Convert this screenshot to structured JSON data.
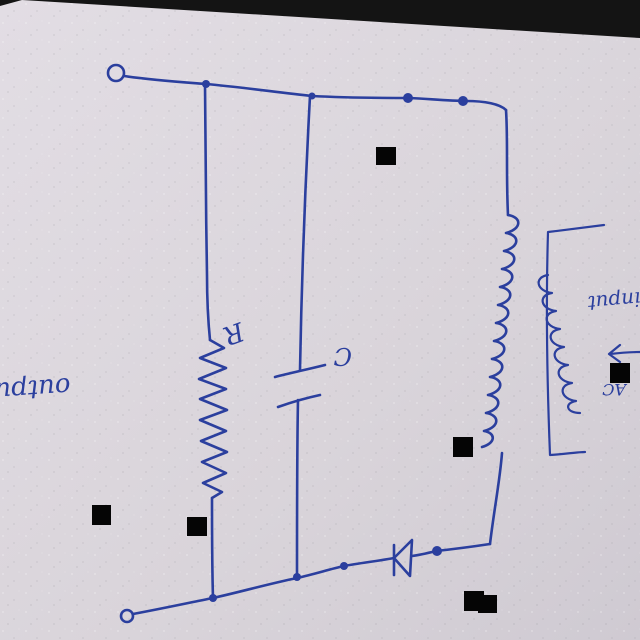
{
  "diagram": {
    "labels": {
      "output": "output",
      "input": "input",
      "resistor": "R",
      "capacitor": "C",
      "ac": "AC"
    }
  },
  "colors": {
    "ink": "#2b3f9e",
    "paper": "#dcd7de",
    "background": "#141414",
    "redaction": "#050505"
  }
}
